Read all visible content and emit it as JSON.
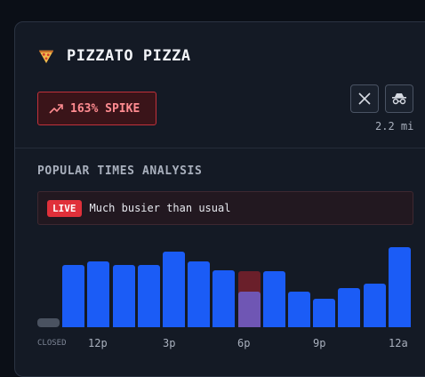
{
  "venue": {
    "name": "PIZZATO PIZZA",
    "icon": "pizza-icon"
  },
  "spike": {
    "label": "163% SPIKE",
    "icon": "trending-up-icon"
  },
  "actions": {
    "x_icon": "x-logo-icon",
    "incognito_icon": "incognito-icon"
  },
  "distance": "2.2 mi",
  "section": {
    "title": "POPULAR TIMES ANALYSIS"
  },
  "live": {
    "badge": "LIVE",
    "text": "Much busier than usual"
  },
  "colors": {
    "bar": "#1b5cf6",
    "live": "#e0303a",
    "spike_border": "#c1313b",
    "current_live": "#6f56b4",
    "current_projected": "#6a1f2a"
  },
  "chart_data": {
    "type": "bar",
    "closed_label": "CLOSED",
    "tick_labels": [
      "12p",
      "3p",
      "6p",
      "9p",
      "12a"
    ],
    "values": [
      0,
      70,
      74,
      70,
      70,
      85,
      74,
      64,
      44,
      63,
      40,
      32,
      44,
      49,
      90
    ],
    "current_index": 8,
    "current_live_value": 40,
    "current_projected_value": 63
  }
}
